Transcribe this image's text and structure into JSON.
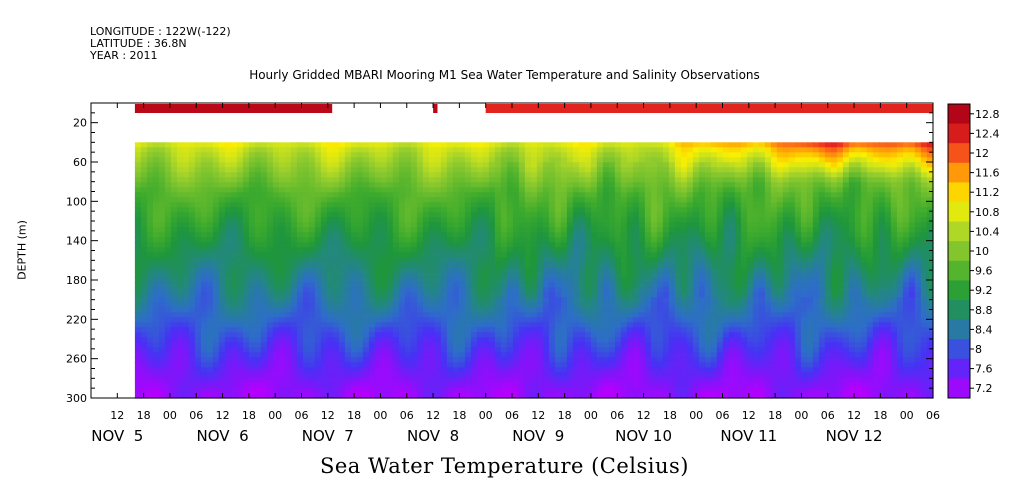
{
  "header": {
    "longitude": "LONGITUDE : 122W(-122)",
    "latitude": "LATITUDE : 36.8N",
    "year": "YEAR : 2011"
  },
  "chart_data": {
    "type": "heatmap",
    "title": "Hourly Gridded MBARI Mooring M1 Sea Water Temperature and Salinity Observations",
    "xlabel": "Sea Water Temperature (Celsius)",
    "ylabel": "DEPTH (m)",
    "y_axis": {
      "range": [
        300,
        0
      ],
      "inverted": true,
      "ticks": [
        20,
        60,
        100,
        140,
        180,
        220,
        260,
        300
      ]
    },
    "x_axis": {
      "start": "2011-11-04 08:00",
      "end": "2011-11-12 08:00",
      "hour_ticks": [
        "12",
        "18",
        "00",
        "06",
        "12",
        "18",
        "00",
        "06",
        "12",
        "18",
        "00",
        "06",
        "12",
        "18",
        "00",
        "06",
        "12",
        "18",
        "00",
        "06",
        "12",
        "18",
        "00",
        "06",
        "12",
        "18",
        "00",
        "06",
        "12",
        "18",
        "00",
        "06"
      ],
      "day_labels": [
        "NOV  5",
        "NOV  6",
        "NOV  7",
        "NOV  8",
        "NOV  9",
        "NOV 10",
        "NOV 11",
        "NOV 12"
      ]
    },
    "colorbar": {
      "levels": [
        "12.8",
        "12.4",
        "12",
        "11.6",
        "11.2",
        "10.8",
        "10.4",
        "10",
        "9.6",
        "9.2",
        "8.8",
        "8.4",
        "8",
        "7.6",
        "7.2"
      ],
      "min": 7.2,
      "max": 12.8
    },
    "surface_temperature_segments": [
      {
        "start": "2011-11-04 18:00",
        "end": "2011-11-06 15:00",
        "value": 12.9
      },
      {
        "start": "2011-11-07 14:00",
        "end": "2011-11-07 15:00",
        "value": 12.9
      },
      {
        "start": "2011-11-08 02:00",
        "end": "2011-11-12 08:00",
        "value": 12.5
      }
    ],
    "profile_depth_range": [
      40,
      300
    ],
    "profile_start": "2011-11-04 18:00"
  }
}
